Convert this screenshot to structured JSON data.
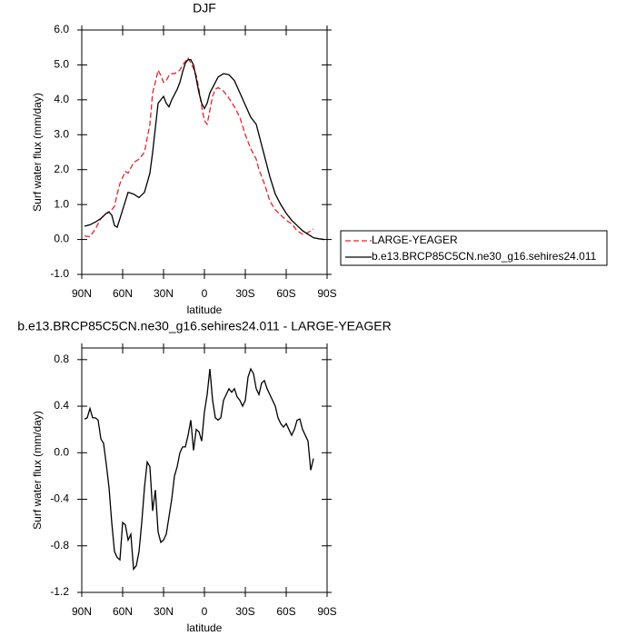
{
  "chart_data": [
    {
      "type": "line",
      "title": "DJF",
      "xlabel": "latitude",
      "ylabel": "Surf water flux (mm/day)",
      "x": [
        88,
        84,
        80,
        76,
        72,
        70,
        68,
        66,
        64,
        62,
        58,
        56,
        52,
        48,
        44,
        40,
        38,
        36,
        34,
        32,
        30,
        28,
        26,
        24,
        22,
        20,
        18,
        16,
        14,
        12,
        10,
        8,
        6,
        4,
        2,
        0,
        -2,
        -4,
        -6,
        -8,
        -10,
        -14,
        -18,
        -22,
        -26,
        -30,
        -34,
        -38,
        -40,
        -44,
        -48,
        -52,
        -56,
        -60,
        -64,
        -68,
        -72,
        -76,
        -80,
        -84,
        -88
      ],
      "series": [
        {
          "name": "LARGE-YEAGER",
          "color": "#e8232a",
          "line_style": "dashed",
          "values": [
            0.1,
            0.08,
            0.3,
            0.6,
            0.75,
            0.8,
            0.85,
            0.95,
            1.3,
            1.6,
            1.95,
            1.9,
            2.2,
            2.3,
            2.5,
            3.3,
            4.2,
            4.5,
            4.85,
            4.7,
            4.5,
            4.55,
            4.7,
            4.75,
            4.75,
            4.8,
            4.85,
            5.0,
            5.1,
            5.2,
            5.05,
            4.9,
            4.7,
            4.3,
            3.8,
            3.4,
            3.3,
            3.7,
            4.1,
            4.3,
            4.35,
            4.25,
            4.05,
            3.8,
            3.5,
            3.0,
            2.6,
            2.3,
            2.0,
            1.6,
            1.1,
            0.85,
            0.7,
            0.55,
            0.45,
            0.25,
            0.15,
            0.2,
            0.3,
            null,
            null
          ]
        },
        {
          "name": "b.e13.BRCP85C5CN.ne30_g16.sehires24.011",
          "color": "#000000",
          "line_style": "solid",
          "values": [
            0.38,
            0.42,
            0.5,
            0.6,
            0.75,
            0.78,
            0.7,
            0.4,
            0.35,
            0.6,
            1.1,
            1.35,
            1.3,
            1.2,
            1.35,
            1.9,
            2.5,
            3.2,
            3.9,
            4.0,
            4.1,
            3.9,
            3.8,
            4.0,
            4.15,
            4.3,
            4.5,
            4.8,
            5.05,
            5.15,
            5.15,
            5.0,
            4.6,
            4.2,
            3.9,
            3.75,
            3.9,
            4.2,
            4.35,
            4.5,
            4.65,
            4.75,
            4.72,
            4.55,
            4.2,
            3.85,
            3.5,
            3.3,
            3.0,
            2.4,
            1.8,
            1.3,
            1.0,
            0.75,
            0.55,
            0.4,
            0.25,
            0.15,
            0.05,
            0.02,
            0.0
          ]
        }
      ],
      "xlim": [
        90,
        -90
      ],
      "xticks": [
        {
          "value": 90,
          "label": "90N"
        },
        {
          "value": 60,
          "label": "60N"
        },
        {
          "value": 30,
          "label": "30N"
        },
        0,
        {
          "value": -30,
          "label": "30S"
        },
        {
          "value": -60,
          "label": "60S"
        },
        {
          "value": -90,
          "label": "90S"
        }
      ],
      "ylim": [
        -1,
        6
      ],
      "yticks": [
        {
          "value": 6,
          "label": "6.0"
        },
        {
          "value": 5,
          "label": "5.0"
        },
        {
          "value": 4,
          "label": "4.0"
        },
        {
          "value": 3,
          "label": "3.0"
        },
        {
          "value": 2,
          "label": "2.0"
        },
        {
          "value": 1,
          "label": "1.0"
        },
        {
          "value": 0,
          "label": "0.0"
        },
        {
          "value": -1,
          "label": "-1.0"
        }
      ],
      "legend": "right"
    },
    {
      "type": "line",
      "title": "b.e13.BRCP85C5CN.ne30_g16.sehires24.011 - LARGE-YEAGER",
      "xlabel": "latitude",
      "ylabel": "Surf water flux (mm/day)",
      "x": [
        88,
        86,
        84,
        82,
        80,
        78,
        76,
        74,
        72,
        70,
        68,
        66,
        64,
        62,
        60,
        58,
        56,
        54,
        52,
        50,
        48,
        46,
        44,
        42,
        40,
        38,
        36,
        34,
        32,
        30,
        28,
        26,
        24,
        22,
        20,
        18,
        16,
        14,
        12,
        10,
        8,
        6,
        4,
        2,
        0,
        -2,
        -4,
        -6,
        -8,
        -10,
        -12,
        -14,
        -16,
        -18,
        -20,
        -22,
        -24,
        -26,
        -28,
        -30,
        -32,
        -34,
        -36,
        -38,
        -40,
        -42,
        -44,
        -46,
        -48,
        -50,
        -52,
        -54,
        -56,
        -58,
        -60,
        -62,
        -64,
        -66,
        -68,
        -70,
        -72,
        -74,
        -76,
        -78,
        -80
      ],
      "color": "#000000",
      "values": [
        0.29,
        0.3,
        0.38,
        0.3,
        0.3,
        0.28,
        0.12,
        0.08,
        -0.1,
        -0.3,
        -0.6,
        -0.85,
        -0.9,
        -0.92,
        -0.6,
        -0.62,
        -0.75,
        -0.7,
        -1.0,
        -0.97,
        -0.85,
        -0.6,
        -0.3,
        -0.08,
        -0.12,
        -0.5,
        -0.32,
        -0.68,
        -0.77,
        -0.75,
        -0.7,
        -0.55,
        -0.4,
        -0.2,
        -0.12,
        0.0,
        0.05,
        0.05,
        0.15,
        0.28,
        0.02,
        0.2,
        0.18,
        0.1,
        0.35,
        0.5,
        0.72,
        0.45,
        0.3,
        0.28,
        0.3,
        0.45,
        0.5,
        0.55,
        0.52,
        0.55,
        0.48,
        0.45,
        0.4,
        0.45,
        0.65,
        0.72,
        0.68,
        0.55,
        0.5,
        0.6,
        0.62,
        0.55,
        0.5,
        0.45,
        0.4,
        0.3,
        0.25,
        0.22,
        0.25,
        0.2,
        0.15,
        0.2,
        0.28,
        0.29,
        0.2,
        0.15,
        0.1,
        -0.15,
        -0.05
      ],
      "xlim": [
        90,
        -90
      ],
      "xticks": [
        {
          "value": 90,
          "label": "90N"
        },
        {
          "value": 60,
          "label": "60N"
        },
        {
          "value": 30,
          "label": "30N"
        },
        0,
        {
          "value": -30,
          "label": "30S"
        },
        {
          "value": -60,
          "label": "60S"
        },
        {
          "value": -90,
          "label": "90S"
        }
      ],
      "ylim": [
        -1.2,
        0.9
      ],
      "yticks": [
        0.8,
        0.4,
        {
          "value": 0,
          "label": "0.0"
        },
        -0.4,
        -0.8,
        -1.2
      ]
    }
  ]
}
